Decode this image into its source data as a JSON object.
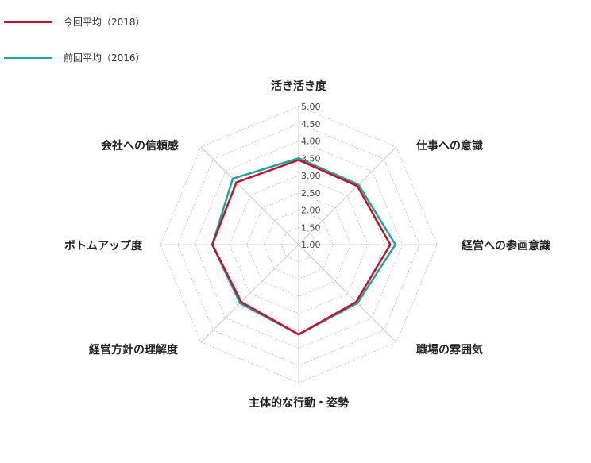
{
  "chart_data": {
    "type": "radar",
    "axes": [
      "活き活き度",
      "仕事への意識",
      "経営への参画意識",
      "職場の雰囲気",
      "主体的な行動・姿勢",
      "経営方針の理解度",
      "ボトムアップ度",
      "会社への信頼感"
    ],
    "r_ticks": [
      "1.00",
      "1.50",
      "2.00",
      "2.50",
      "3.00",
      "3.50",
      "4.00",
      "4.50",
      "5.00"
    ],
    "rlim": [
      1,
      5
    ],
    "grid": true,
    "legend_position": "top-left",
    "series": [
      {
        "name": "今回平均（2018）",
        "color": "#c8102e",
        "values": [
          3.45,
          3.4,
          3.65,
          3.35,
          3.6,
          3.35,
          3.5,
          3.55
        ]
      },
      {
        "name": "前回平均（2016）",
        "color": "#1aa89a",
        "values": [
          3.5,
          3.45,
          3.8,
          3.4,
          3.6,
          3.4,
          3.5,
          3.7
        ]
      }
    ]
  }
}
